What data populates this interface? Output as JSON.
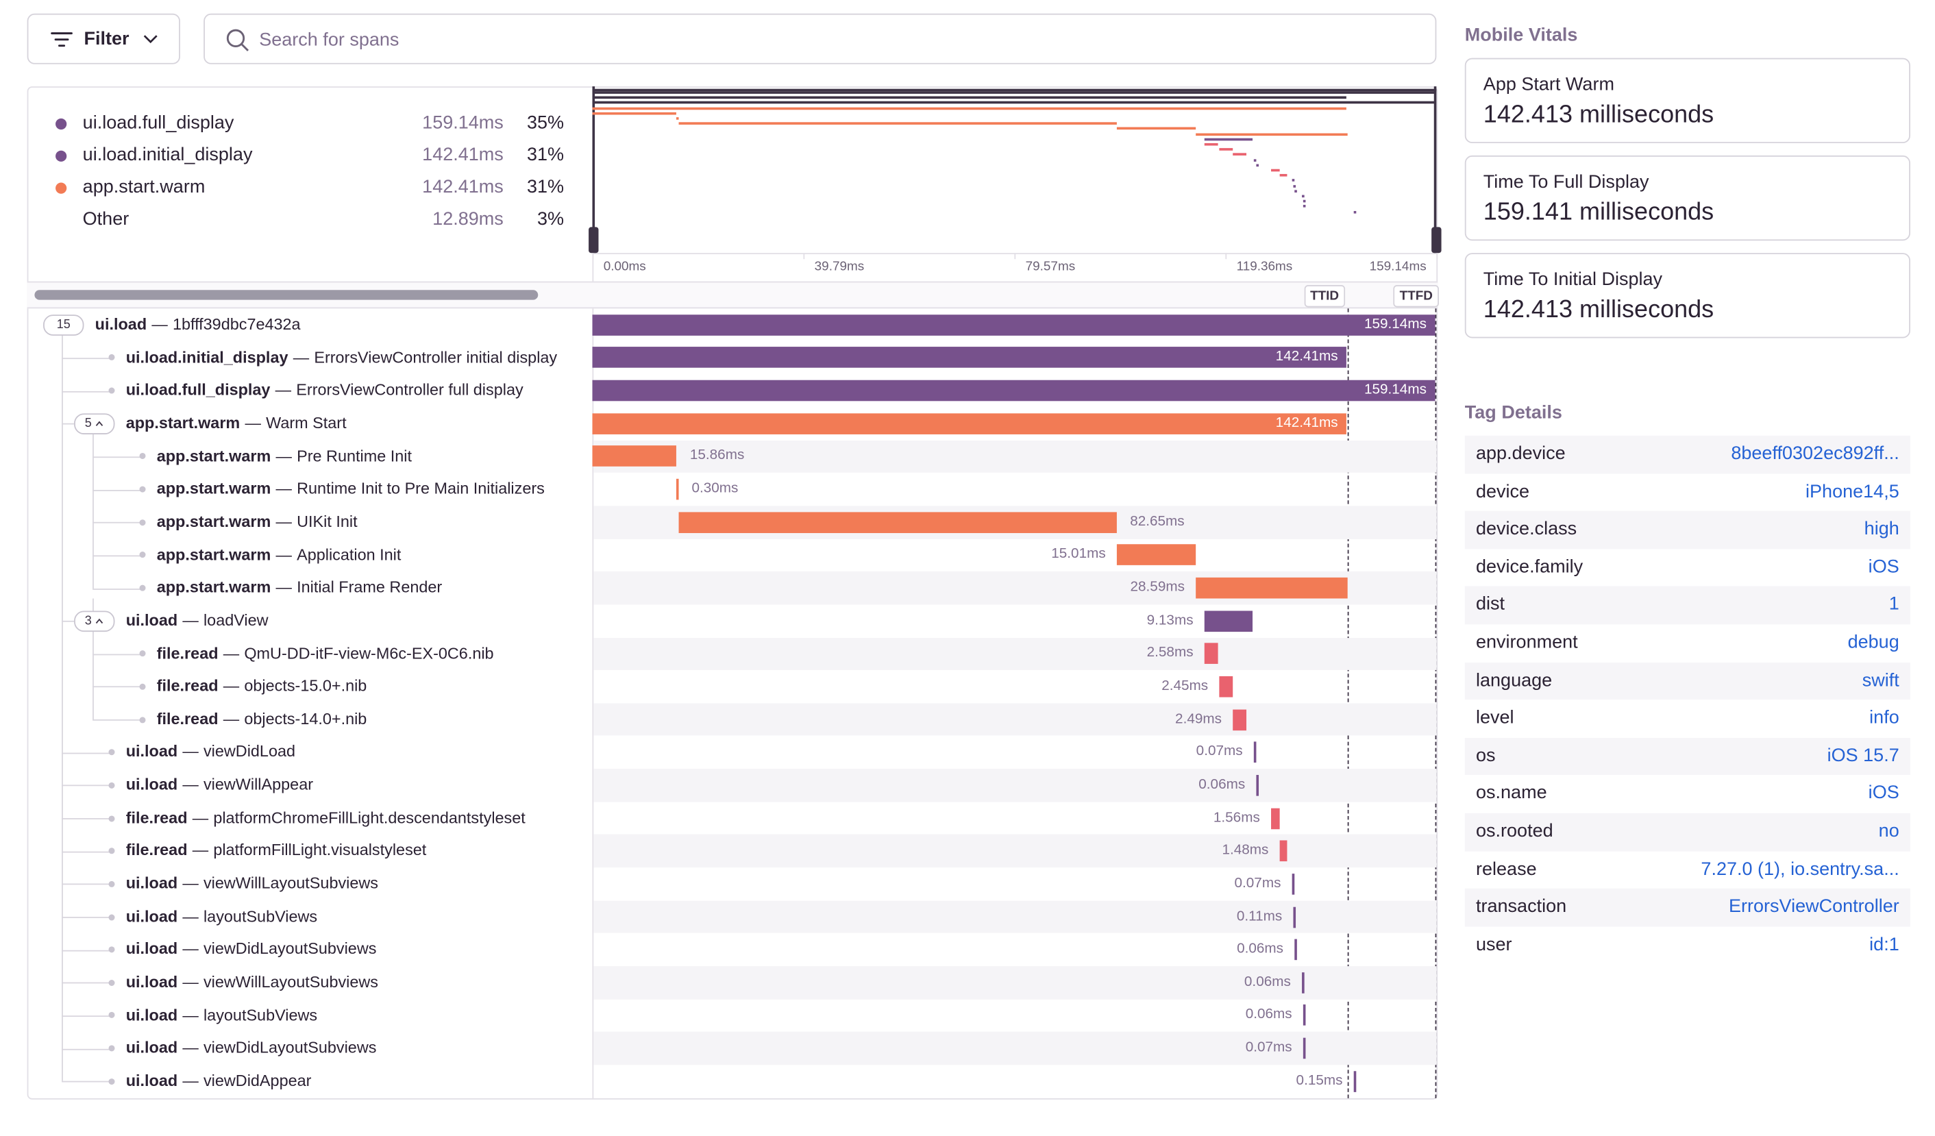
{
  "toolbar": {
    "filter": "Filter",
    "search_placeholder": "Search for spans"
  },
  "span_separator": "—",
  "summary": [
    {
      "name": "ui.load.full_display",
      "duration": "159.14ms",
      "percent": "35%",
      "color": "#77518c"
    },
    {
      "name": "ui.load.initial_display",
      "duration": "142.41ms",
      "percent": "31%",
      "color": "#77518c"
    },
    {
      "name": "app.start.warm",
      "duration": "142.41ms",
      "percent": "31%",
      "color": "#f27b55"
    },
    {
      "name": "Other",
      "duration": "12.89ms",
      "percent": "3%"
    }
  ],
  "minimap_ticks": [
    "0.00ms",
    "39.79ms",
    "79.57ms",
    "119.36ms",
    "159.14ms"
  ],
  "markers": [
    "TTID",
    "TTFD"
  ],
  "spans": [
    {
      "count": "15",
      "op": "ui.load",
      "description": "1bfff39dbc7e432a",
      "duration": "159.14ms",
      "color": "#77518c"
    },
    {
      "op": "ui.load.initial_display",
      "description": "ErrorsViewController initial display",
      "duration": "142.41ms",
      "color": "#77518c"
    },
    {
      "op": "ui.load.full_display",
      "description": "ErrorsViewController full display",
      "duration": "159.14ms",
      "color": "#77518c"
    },
    {
      "count": "5",
      "op": "app.start.warm",
      "description": "Warm Start",
      "duration": "142.41ms",
      "color": "#f27b55"
    },
    {
      "op": "app.start.warm",
      "description": "Pre Runtime Init",
      "duration": "15.86ms",
      "color": "#f27b55"
    },
    {
      "op": "app.start.warm",
      "description": "Runtime Init to Pre Main Initializers",
      "duration": "0.30ms",
      "color": "#f27b55"
    },
    {
      "op": "app.start.warm",
      "description": "UIKit Init",
      "duration": "82.65ms",
      "color": "#f27b55"
    },
    {
      "op": "app.start.warm",
      "description": "Application Init",
      "duration": "15.01ms",
      "color": "#f27b55"
    },
    {
      "op": "app.start.warm",
      "description": "Initial Frame Render",
      "duration": "28.59ms",
      "color": "#f27b55"
    },
    {
      "count": "3",
      "op": "ui.load",
      "description": "loadView",
      "duration": "9.13ms",
      "color": "#77518c"
    },
    {
      "op": "file.read",
      "description": "QmU-DD-itF-view-M6c-EX-0C6.nib",
      "duration": "2.58ms",
      "color": "#e9626e"
    },
    {
      "op": "file.read",
      "description": "objects-15.0+.nib",
      "duration": "2.45ms",
      "color": "#e9626e"
    },
    {
      "op": "file.read",
      "description": "objects-14.0+.nib",
      "duration": "2.49ms",
      "color": "#e9626e"
    },
    {
      "op": "ui.load",
      "description": "viewDidLoad",
      "duration": "0.07ms",
      "color": "#77518c"
    },
    {
      "op": "ui.load",
      "description": "viewWillAppear",
      "duration": "0.06ms",
      "color": "#77518c"
    },
    {
      "op": "file.read",
      "description": "platformChromeFillLight.descendantstyleset",
      "duration": "1.56ms",
      "color": "#e9626e"
    },
    {
      "op": "file.read",
      "description": "platformFillLight.visualstyleset",
      "duration": "1.48ms",
      "color": "#e9626e"
    },
    {
      "op": "ui.load",
      "description": "viewWillLayoutSubviews",
      "duration": "0.07ms",
      "color": "#77518c"
    },
    {
      "op": "ui.load",
      "description": "layoutSubViews",
      "duration": "0.11ms",
      "color": "#77518c"
    },
    {
      "op": "ui.load",
      "description": "viewDidLayoutSubviews",
      "duration": "0.06ms",
      "color": "#77518c"
    },
    {
      "op": "ui.load",
      "description": "viewWillLayoutSubviews",
      "duration": "0.06ms",
      "color": "#77518c"
    },
    {
      "op": "ui.load",
      "description": "layoutSubViews",
      "duration": "0.06ms",
      "color": "#77518c"
    },
    {
      "op": "ui.load",
      "description": "viewDidLayoutSubviews",
      "duration": "0.07ms",
      "color": "#77518c"
    },
    {
      "op": "ui.load",
      "description": "viewDidAppear",
      "duration": "0.15ms",
      "color": "#77518c"
    }
  ],
  "mobile_vitals": {
    "title": "Mobile Vitals",
    "items": [
      {
        "label": "App Start Warm",
        "value": "142.413 milliseconds"
      },
      {
        "label": "Time To Full Display",
        "value": "159.141 milliseconds"
      },
      {
        "label": "Time To Initial Display",
        "value": "142.413 milliseconds"
      }
    ]
  },
  "tag_details": {
    "title": "Tag Details",
    "rows": [
      {
        "key": "app.device",
        "value": "8beeff0302ec892ff..."
      },
      {
        "key": "device",
        "value": "iPhone14,5"
      },
      {
        "key": "device.class",
        "value": "high"
      },
      {
        "key": "device.family",
        "value": "iOS"
      },
      {
        "key": "dist",
        "value": "1"
      },
      {
        "key": "environment",
        "value": "debug"
      },
      {
        "key": "language",
        "value": "swift"
      },
      {
        "key": "level",
        "value": "info"
      },
      {
        "key": "os",
        "value": "iOS 15.7"
      },
      {
        "key": "os.name",
        "value": "iOS"
      },
      {
        "key": "os.rooted",
        "value": "no"
      },
      {
        "key": "release",
        "value": "7.27.0 (1), io.sentry.sa..."
      },
      {
        "key": "transaction",
        "value": "ErrorsViewController"
      },
      {
        "key": "user",
        "value": "id:1"
      }
    ]
  }
}
